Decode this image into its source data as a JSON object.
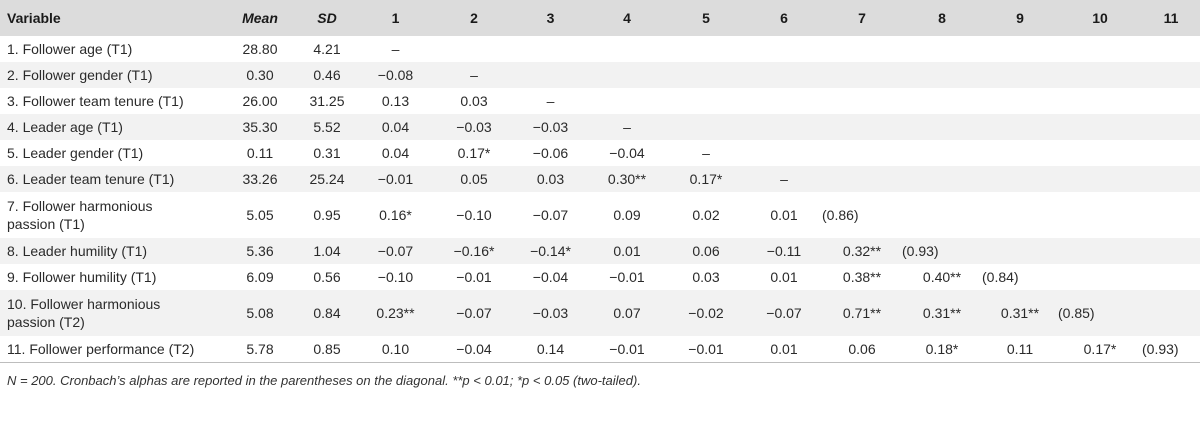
{
  "table": {
    "headers": [
      "Variable",
      "Mean",
      "SD",
      "1",
      "2",
      "3",
      "4",
      "5",
      "6",
      "7",
      "8",
      "9",
      "10",
      "11"
    ],
    "rows": [
      {
        "variable": "1. Follower age (T1)",
        "mean": "28.80",
        "sd": "4.21",
        "c": [
          "–",
          "",
          "",
          "",
          "",
          "",
          "",
          "",
          "",
          "",
          ""
        ]
      },
      {
        "variable": "2. Follower gender (T1)",
        "mean": "0.30",
        "sd": "0.46",
        "c": [
          "−0.08",
          "–",
          "",
          "",
          "",
          "",
          "",
          "",
          "",
          "",
          ""
        ]
      },
      {
        "variable": "3. Follower team tenure (T1)",
        "mean": "26.00",
        "sd": "31.25",
        "c": [
          "0.13",
          "0.03",
          "–",
          "",
          "",
          "",
          "",
          "",
          "",
          "",
          ""
        ]
      },
      {
        "variable": "4. Leader age (T1)",
        "mean": "35.30",
        "sd": "5.52",
        "c": [
          "0.04",
          "−0.03",
          "−0.03",
          "–",
          "",
          "",
          "",
          "",
          "",
          "",
          ""
        ]
      },
      {
        "variable": "5. Leader gender (T1)",
        "mean": "0.11",
        "sd": "0.31",
        "c": [
          "0.04",
          "0.17*",
          "−0.06",
          "−0.04",
          "–",
          "",
          "",
          "",
          "",
          "",
          ""
        ]
      },
      {
        "variable": "6. Leader team tenure (T1)",
        "mean": "33.26",
        "sd": "25.24",
        "c": [
          "−0.01",
          "0.05",
          "0.03",
          "0.30**",
          "0.17*",
          "–",
          "",
          "",
          "",
          "",
          ""
        ]
      },
      {
        "variable": "7. Follower harmonious passion (T1)",
        "mean": "5.05",
        "sd": "0.95",
        "c": [
          "0.16*",
          "−0.10",
          "−0.07",
          "0.09",
          "0.02",
          "0.01",
          "(0.86)",
          "",
          "",
          "",
          ""
        ]
      },
      {
        "variable": "8. Leader humility (T1)",
        "mean": "5.36",
        "sd": "1.04",
        "c": [
          "−0.07",
          "−0.16*",
          "−0.14*",
          "0.01",
          "0.06",
          "−0.11",
          "0.32**",
          "(0.93)",
          "",
          "",
          ""
        ]
      },
      {
        "variable": "9. Follower humility (T1)",
        "mean": "6.09",
        "sd": "0.56",
        "c": [
          "−0.10",
          "−0.01",
          "−0.04",
          "−0.01",
          "0.03",
          "0.01",
          "0.38**",
          "0.40**",
          "(0.84)",
          "",
          ""
        ]
      },
      {
        "variable": "10. Follower harmonious passion (T2)",
        "mean": "5.08",
        "sd": "0.84",
        "c": [
          "0.23**",
          "−0.07",
          "−0.03",
          "0.07",
          "−0.02",
          "−0.07",
          "0.71**",
          "0.31**",
          "0.31**",
          "(0.85)",
          ""
        ]
      },
      {
        "variable": "11. Follower performance (T2)",
        "mean": "5.78",
        "sd": "0.85",
        "c": [
          "0.10",
          "−0.04",
          "0.14",
          "−0.01",
          "−0.01",
          "0.01",
          "0.06",
          "0.18*",
          "0.11",
          "0.17*",
          "(0.93)"
        ]
      }
    ],
    "note": "N = 200. Cronbach’s alphas are reported in the parentheses on the diagonal. **p < 0.01; *p < 0.05 (two-tailed)."
  }
}
